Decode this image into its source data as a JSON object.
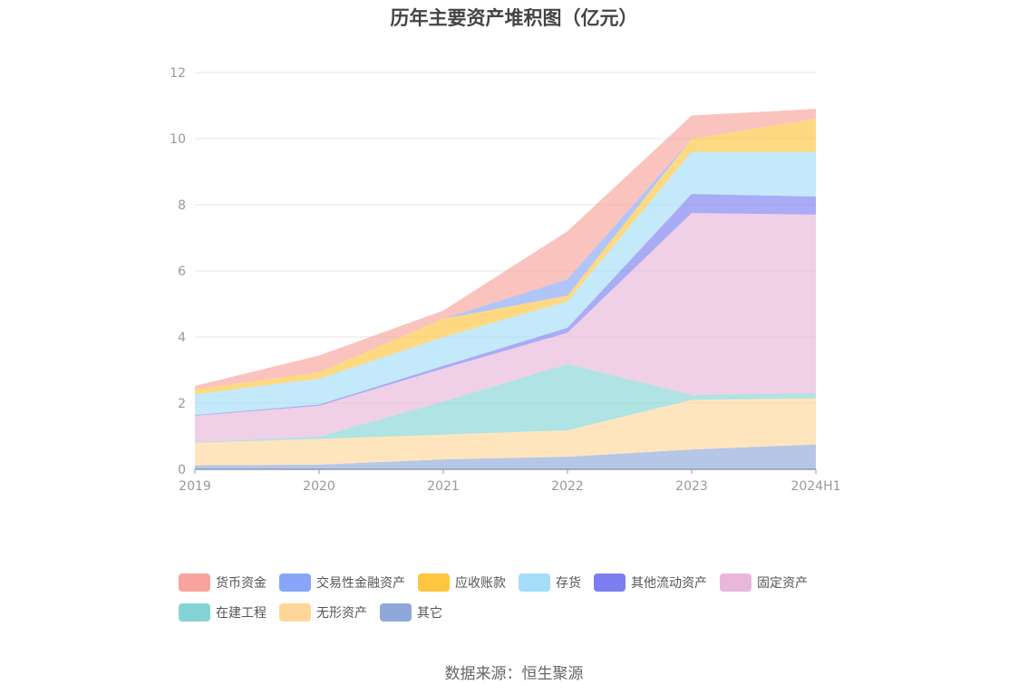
{
  "title": "历年主要资产堆积图（亿元）",
  "source": "数据来源：恒生聚源",
  "chart_data": {
    "type": "area",
    "stacked": true,
    "categories": [
      "2019",
      "2020",
      "2021",
      "2022",
      "2023",
      "2024H1"
    ],
    "y_ticks": [
      "0",
      "2",
      "4",
      "6",
      "8",
      "10",
      "12"
    ],
    "ylim": [
      0,
      12
    ],
    "grid": true,
    "legend_position": "bottom",
    "series": [
      {
        "name": "其它",
        "color": "#8fa8d8",
        "values": [
          0.12,
          0.14,
          0.3,
          0.38,
          0.6,
          0.75
        ]
      },
      {
        "name": "无形资产",
        "color": "#fdd79a",
        "values": [
          0.68,
          0.78,
          0.75,
          0.8,
          1.5,
          1.4
        ]
      },
      {
        "name": "在建工程",
        "color": "#84d4d6",
        "values": [
          0.02,
          0.07,
          1.0,
          2.0,
          0.15,
          0.15
        ]
      },
      {
        "name": "固定资产",
        "color": "#e8b7d9",
        "values": [
          0.8,
          0.93,
          1.0,
          0.95,
          5.5,
          5.4
        ]
      },
      {
        "name": "其他流动资产",
        "color": "#7b7ef0",
        "values": [
          0.02,
          0.04,
          0.08,
          0.15,
          0.58,
          0.55
        ]
      },
      {
        "name": "存货",
        "color": "#a3ddf8",
        "values": [
          0.63,
          0.78,
          0.87,
          0.8,
          1.27,
          1.35
        ]
      },
      {
        "name": "应收账款",
        "color": "#fec53f",
        "values": [
          0.15,
          0.2,
          0.55,
          0.17,
          0.4,
          1.0
        ]
      },
      {
        "name": "交易性金融资产",
        "color": "#87a6f7",
        "values": [
          0.0,
          0.0,
          0.0,
          0.5,
          0.0,
          0.0
        ]
      },
      {
        "name": "货币资金",
        "color": "#f8a39b",
        "values": [
          0.1,
          0.5,
          0.25,
          1.45,
          0.7,
          0.3
        ]
      }
    ]
  },
  "legend": {
    "rows": [
      [
        {
          "label": "货币资金",
          "color": "#f8a39b"
        },
        {
          "label": "交易性金融资产",
          "color": "#87a6f7"
        },
        {
          "label": "应收账款",
          "color": "#fec53f"
        },
        {
          "label": "存货",
          "color": "#a3ddf8"
        },
        {
          "label": "其他流动资产",
          "color": "#7b7ef0"
        },
        {
          "label": "固定资产",
          "color": "#e8b7d9"
        }
      ],
      [
        {
          "label": "在建工程",
          "color": "#84d4d6"
        },
        {
          "label": "无形资产",
          "color": "#fdd79a"
        },
        {
          "label": "其它",
          "color": "#8fa8d8"
        }
      ]
    ]
  }
}
